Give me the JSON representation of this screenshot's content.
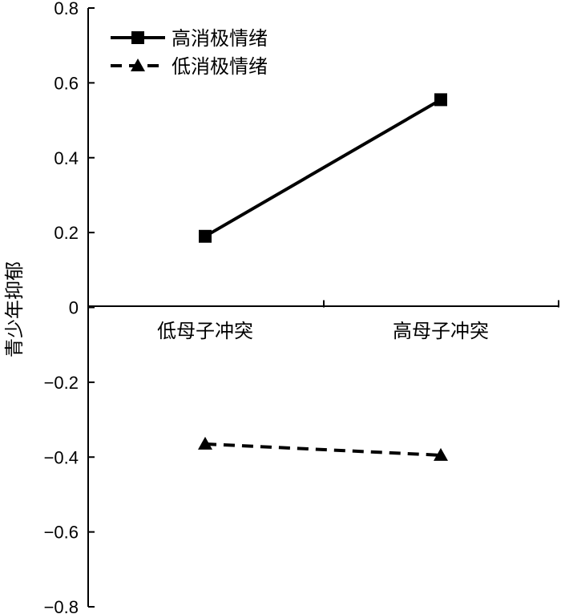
{
  "chart_data": {
    "type": "line",
    "categories": [
      "低母子冲突",
      "高母子冲突"
    ],
    "series": [
      {
        "name": "高消极情绪",
        "values": [
          0.19,
          0.555
        ],
        "marker": "square",
        "line_style": "solid",
        "color": "#000000"
      },
      {
        "name": "低消极情绪",
        "values": [
          -0.365,
          -0.395
        ],
        "marker": "triangle",
        "line_style": "dashed",
        "color": "#000000"
      }
    ],
    "ylabel": "青少年抑郁",
    "xlabel": "",
    "ylim": [
      -0.8,
      0.8
    ],
    "yticks": [
      0.8,
      0.6,
      0.4,
      0.2,
      0,
      -0.2,
      -0.4,
      -0.6,
      -0.8
    ],
    "ytick_labels": [
      "0.8",
      "0.6",
      "0.4",
      "0.2",
      "0",
      "−0.2",
      "−0.4",
      "−0.6",
      "−0.8"
    ],
    "grid": false,
    "legend_position": "top-left"
  }
}
